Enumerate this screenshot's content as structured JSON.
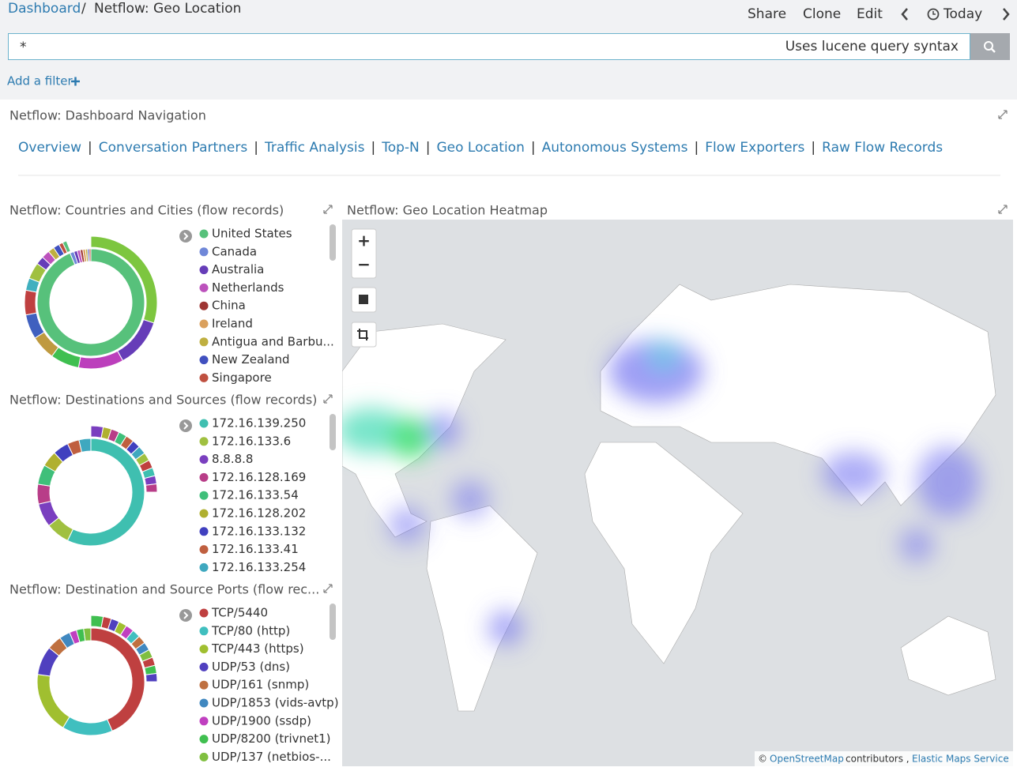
{
  "breadcrumb": {
    "root": "Dashboard",
    "separator": "/",
    "current": "Netflow: Geo Location"
  },
  "menu": [
    "Share",
    "Clone",
    "Edit",
    "Today"
  ],
  "query": {
    "value": "*",
    "hint": "Uses lucene query syntax"
  },
  "filter": "Add a filter",
  "navigation": {
    "title": "Netflow: Dashboard Navigation",
    "separator": "|",
    "links": [
      "Overview",
      "Conversation Partners",
      "Traffic Analysis",
      "Top-N",
      "Geo Location",
      "Autonomous Systems",
      "Flow Exporters",
      "Raw Flow Records"
    ]
  },
  "panels": [
    {
      "title": "Netflow: Countries and Cities (flow records)",
      "legend": [
        {
          "label": "United States",
          "color": "#57c17b"
        },
        {
          "label": "Canada",
          "color": "#6f87d8"
        },
        {
          "label": "Australia",
          "color": "#663db8"
        },
        {
          "label": "Netherlands",
          "color": "#bc52bc"
        },
        {
          "label": "China",
          "color": "#9e3533"
        },
        {
          "label": "Ireland",
          "color": "#daa05d"
        },
        {
          "label": "Antigua and Barbu...",
          "color": "#bfaf40"
        },
        {
          "label": "New Zealand",
          "color": "#4050bf"
        },
        {
          "label": "Singapore",
          "color": "#bf5040"
        }
      ],
      "inner": [
        93,
        1.2,
        1,
        0.9,
        0.8,
        0.8,
        0.6,
        0.5,
        0.5
      ],
      "outer": [
        {
          "value": 30,
          "color": "#7dc63f"
        },
        {
          "value": 12,
          "color": "#663db8"
        },
        {
          "value": 11,
          "color": "#bc3fbc"
        },
        {
          "value": 7,
          "color": "#3fbf50"
        },
        {
          "value": 6,
          "color": "#bf9a40"
        },
        {
          "value": 6,
          "color": "#4060bf"
        },
        {
          "value": 6,
          "color": "#bf4040"
        },
        {
          "value": 3,
          "color": "#40b0bf"
        },
        {
          "value": 4,
          "color": "#a0c040"
        },
        {
          "value": 2,
          "color": "#663db8"
        },
        {
          "value": 2,
          "color": "#bc52bc"
        },
        {
          "value": 1.5,
          "color": "#bfaf40"
        },
        {
          "value": 1.5,
          "color": "#4050bf"
        },
        {
          "value": 1,
          "color": "#bf5040"
        },
        {
          "value": 1,
          "color": "#57c17b"
        }
      ]
    },
    {
      "title": "Netflow: Destinations and Sources (flow records)",
      "legend": [
        {
          "label": "172.16.139.250",
          "color": "#3fbfb0"
        },
        {
          "label": "172.16.133.6",
          "color": "#a0c040"
        },
        {
          "label": "8.8.8.8",
          "color": "#7a3fbf"
        },
        {
          "label": "172.16.128.169",
          "color": "#b83d88"
        },
        {
          "label": "172.16.133.54",
          "color": "#3fbf7a"
        },
        {
          "label": "172.16.128.202",
          "color": "#b0b030"
        },
        {
          "label": "172.16.133.132",
          "color": "#4040bf"
        },
        {
          "label": "172.16.133.41",
          "color": "#bf5f3f"
        },
        {
          "label": "172.16.133.254",
          "color": "#3fa8bf"
        }
      ],
      "inner": [
        48,
        6,
        6,
        5,
        5,
        4,
        4,
        3,
        3
      ],
      "outer": [
        {
          "value": 3,
          "color": "#7a3fbf"
        },
        {
          "value": 2,
          "color": "#b0b030"
        },
        {
          "value": 2,
          "color": "#b83d88"
        },
        {
          "value": 2,
          "color": "#3fbf7a"
        },
        {
          "value": 2,
          "color": "#bf5f3f"
        },
        {
          "value": 2,
          "color": "#4040bf"
        },
        {
          "value": 2,
          "color": "#3fa8bf"
        },
        {
          "value": 2,
          "color": "#a0c040"
        },
        {
          "value": 2,
          "color": "#bf3f3f"
        },
        {
          "value": 2,
          "color": "#3fbfb0"
        },
        {
          "value": 2,
          "color": "#7a3fbf"
        },
        {
          "value": 2,
          "color": "#b83d88"
        }
      ]
    },
    {
      "title": "Netflow: Destination and Source Ports (flow rec...",
      "legend": [
        {
          "label": "TCP/5440",
          "color": "#bf4040"
        },
        {
          "label": "TCP/80 (http)",
          "color": "#40bfbf"
        },
        {
          "label": "TCP/443 (https)",
          "color": "#a0bf30"
        },
        {
          "label": "UDP/53 (dns)",
          "color": "#5040bf"
        },
        {
          "label": "UDP/161 (snmp)",
          "color": "#bf7040"
        },
        {
          "label": "UDP/1853 (vids-avtp)",
          "color": "#4088c0"
        },
        {
          "label": "UDP/1900 (ssdp)",
          "color": "#c040c0"
        },
        {
          "label": "UDP/8200 (trivnet1)",
          "color": "#40bf50"
        },
        {
          "label": "UDP/137 (netbios-...",
          "color": "#80bf40"
        }
      ],
      "inner": [
        40,
        14,
        17,
        8,
        4,
        3,
        2,
        2,
        2
      ],
      "outer": [
        {
          "value": 3,
          "color": "#40bf50"
        },
        {
          "value": 2,
          "color": "#bf4040"
        },
        {
          "value": 2,
          "color": "#5040bf"
        },
        {
          "value": 2,
          "color": "#a0bf30"
        },
        {
          "value": 2,
          "color": "#c040c0"
        },
        {
          "value": 2,
          "color": "#40bfbf"
        },
        {
          "value": 2,
          "color": "#bf7040"
        },
        {
          "value": 2,
          "color": "#4088c0"
        },
        {
          "value": 2,
          "color": "#80bf40"
        },
        {
          "value": 2,
          "color": "#bf4040"
        },
        {
          "value": 2,
          "color": "#40bf50"
        },
        {
          "value": 2,
          "color": "#5040bf"
        }
      ]
    }
  ],
  "map": {
    "title": "Netflow: Geo Location Heatmap",
    "controls": [
      "+",
      "−"
    ],
    "attribution": {
      "copyright": "©",
      "osm": "OpenStreetMap",
      "contributors": "contributors ,",
      "ems": "Elastic Maps Service"
    }
  }
}
